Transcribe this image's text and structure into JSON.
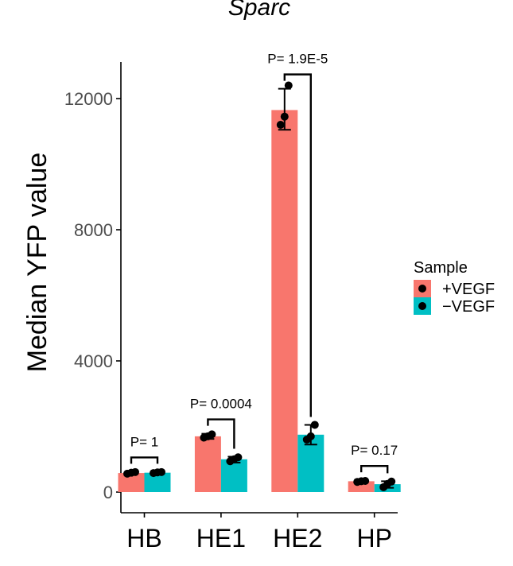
{
  "chart_data": {
    "type": "bar",
    "title": "Sparc",
    "ylabel": "Median YFP value",
    "xlabel": "",
    "ylim": [
      -300,
      13200
    ],
    "yticks": [
      0,
      4000,
      8000,
      12000
    ],
    "categories": [
      "HB",
      "HE1",
      "HE2",
      "HP"
    ],
    "series": [
      {
        "name": "+VEGF",
        "color": "#F8766D",
        "values": [
          580,
          1700,
          11650,
          330
        ],
        "error": [
          [
            540,
            620
          ],
          [
            1620,
            1780
          ],
          [
            11050,
            12300
          ],
          [
            300,
            360
          ]
        ],
        "points": [
          [
            560,
            590,
            610
          ],
          [
            1660,
            1700,
            1760
          ],
          [
            11200,
            11450,
            12400
          ],
          [
            310,
            330,
            340
          ]
        ]
      },
      {
        "name": "−VEGF",
        "color": "#00BFC4",
        "values": [
          590,
          1000,
          1750,
          240
        ],
        "error": [
          [
            560,
            620
          ],
          [
            900,
            1080
          ],
          [
            1450,
            2050
          ],
          [
            130,
            330
          ]
        ],
        "points": [
          [
            580,
            600,
            610
          ],
          [
            940,
            1000,
            1060
          ],
          [
            1600,
            1700,
            2050
          ],
          [
            150,
            250,
            320
          ]
        ]
      }
    ],
    "annotations": [
      {
        "category": "HB",
        "label": "P= 1"
      },
      {
        "category": "HE1",
        "label": "P= 0.0004"
      },
      {
        "category": "HE2",
        "label": "P= 1.9E-5"
      },
      {
        "category": "HP",
        "label": "P= 0.17"
      }
    ],
    "legend": {
      "title": "Sample",
      "position": "right"
    },
    "grid": false
  }
}
